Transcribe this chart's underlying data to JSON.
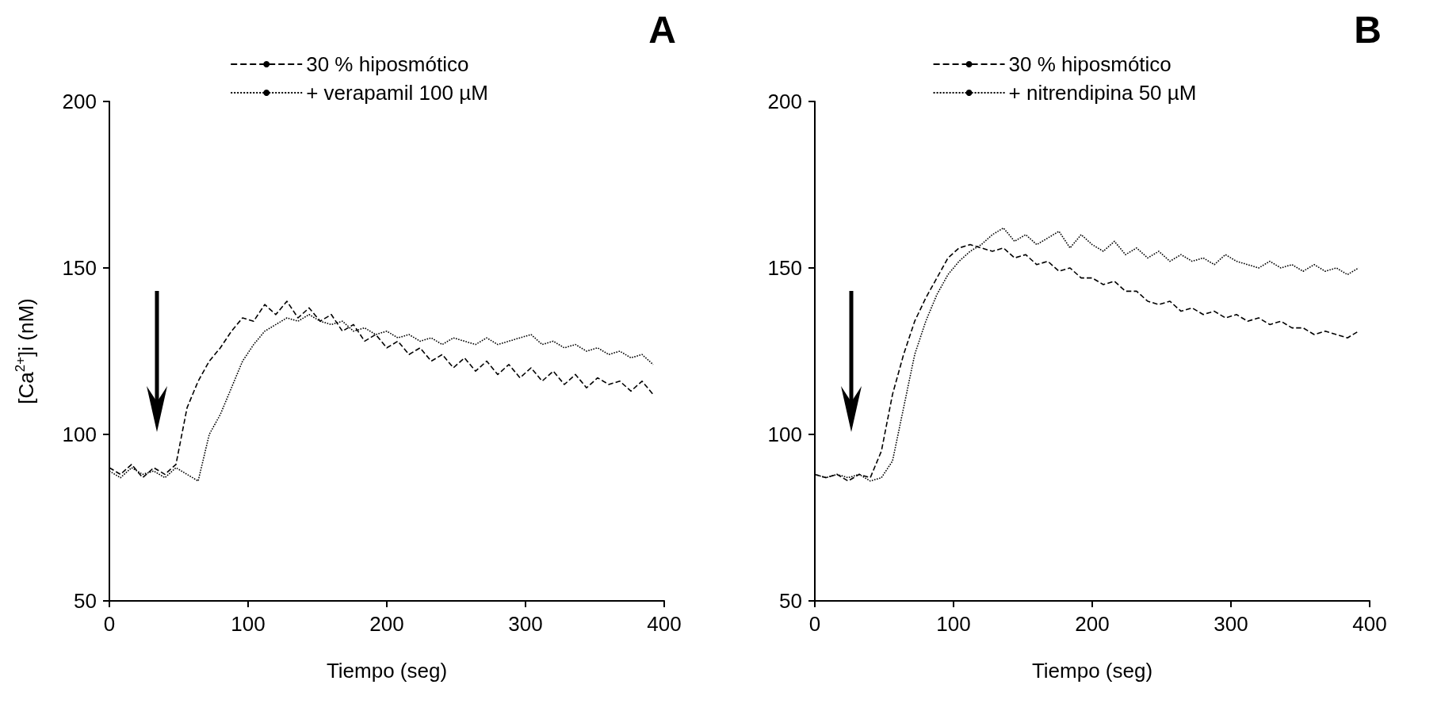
{
  "chart_data": [
    {
      "type": "line",
      "title": "A",
      "xlabel": "Tiempo (seg)",
      "ylabel": "[Ca$^{2+}$]i (nM)",
      "x": [
        0,
        8,
        16,
        24,
        32,
        40,
        48,
        56,
        64,
        72,
        80,
        88,
        96,
        104,
        112,
        120,
        128,
        136,
        144,
        152,
        160,
        168,
        176,
        184,
        192,
        200,
        208,
        216,
        224,
        232,
        240,
        248,
        256,
        264,
        272,
        280,
        288,
        296,
        304,
        312,
        320,
        328,
        336,
        344,
        352,
        360,
        368,
        376,
        384,
        392
      ],
      "series": [
        {
          "name": "30 % hiposmótico",
          "color": "#000000",
          "line_style": "dashed",
          "values": [
            90,
            88,
            91,
            87,
            90,
            88,
            91,
            108,
            116,
            122,
            126,
            131,
            135,
            134,
            139,
            136,
            140,
            135,
            138,
            134,
            136,
            131,
            133,
            128,
            130,
            126,
            128,
            124,
            126,
            122,
            124,
            120,
            123,
            119,
            122,
            118,
            121,
            117,
            120,
            116,
            119,
            115,
            118,
            114,
            117,
            115,
            116,
            113,
            116,
            112
          ]
        },
        {
          "name": "+ verapamil 100 µM",
          "color": "#000000",
          "line_style": "dotted",
          "values": [
            89,
            87,
            90,
            88,
            89,
            87,
            90,
            88,
            86,
            100,
            106,
            114,
            122,
            127,
            131,
            133,
            135,
            134,
            136,
            134,
            133,
            134,
            131,
            132,
            130,
            131,
            129,
            130,
            128,
            129,
            127,
            129,
            128,
            127,
            129,
            127,
            128,
            129,
            130,
            127,
            128,
            126,
            127,
            125,
            126,
            124,
            125,
            123,
            124,
            121
          ]
        }
      ],
      "xlim": [
        0,
        400
      ],
      "xticks": [
        0,
        100,
        200,
        300,
        400
      ],
      "ylim": [
        50,
        200
      ],
      "yticks": [
        50,
        100,
        150,
        200
      ],
      "grid": false,
      "legend": "top",
      "marker": "none"
    },
    {
      "type": "line",
      "title": "B",
      "xlabel": "Tiempo (seg)",
      "x": [
        0,
        8,
        16,
        24,
        32,
        40,
        48,
        56,
        64,
        72,
        80,
        88,
        96,
        104,
        112,
        120,
        128,
        136,
        144,
        152,
        160,
        168,
        176,
        184,
        192,
        200,
        208,
        216,
        224,
        232,
        240,
        248,
        256,
        264,
        272,
        280,
        288,
        296,
        304,
        312,
        320,
        328,
        336,
        344,
        352,
        360,
        368,
        376,
        384,
        392
      ],
      "series": [
        {
          "name": "30 % hiposmótico",
          "color": "#000000",
          "line_style": "dashed",
          "values": [
            88,
            87,
            88,
            86,
            88,
            87,
            95,
            112,
            124,
            134,
            141,
            147,
            153,
            156,
            157,
            156,
            155,
            156,
            153,
            154,
            151,
            152,
            149,
            150,
            147,
            147,
            145,
            146,
            143,
            143,
            140,
            139,
            140,
            137,
            138,
            136,
            137,
            135,
            136,
            134,
            135,
            133,
            134,
            132,
            132,
            130,
            131,
            130,
            129,
            131
          ]
        },
        {
          "name": "+ nitrendipina 50 µM",
          "color": "#000000",
          "line_style": "dotted",
          "values": [
            88,
            87,
            88,
            87,
            88,
            86,
            87,
            92,
            108,
            124,
            134,
            142,
            148,
            152,
            155,
            157,
            160,
            162,
            158,
            160,
            157,
            159,
            161,
            156,
            160,
            157,
            155,
            158,
            154,
            156,
            153,
            155,
            152,
            154,
            152,
            153,
            151,
            154,
            152,
            151,
            150,
            152,
            150,
            151,
            149,
            151,
            149,
            150,
            148,
            150
          ]
        }
      ],
      "xlim": [
        0,
        400
      ],
      "xticks": [
        0,
        100,
        200,
        300,
        400
      ],
      "ylim": [
        50,
        200
      ],
      "yticks": [
        50,
        100,
        150,
        200
      ],
      "grid": false,
      "legend": "top",
      "marker": "none"
    }
  ]
}
